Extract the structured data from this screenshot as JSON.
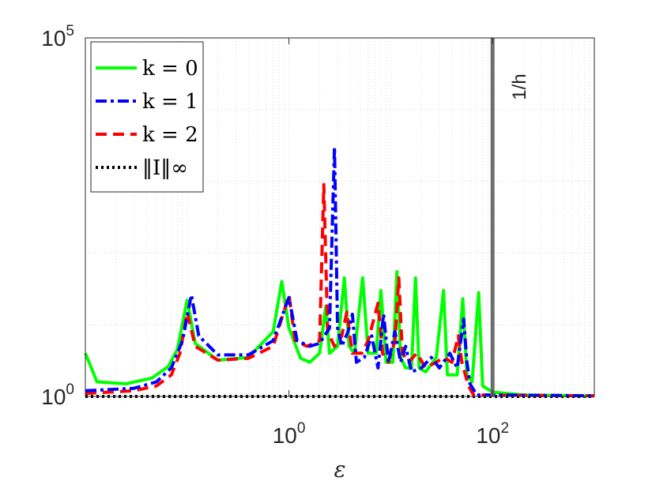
{
  "chart_data": {
    "type": "line",
    "xscale": "log",
    "yscale": "log",
    "xlim": [
      0.01,
      1000
    ],
    "ylim": [
      1,
      100000
    ],
    "xlabel": "ε",
    "ylabel": "",
    "title": "",
    "grid": true,
    "legend_position": "top-left",
    "xticks": [
      {
        "base": "10",
        "exp": "0",
        "value": 1
      },
      {
        "base": "10",
        "exp": "2",
        "value": 100
      }
    ],
    "yticks": [
      {
        "base": "10",
        "exp": "0",
        "value": 1
      },
      {
        "base": "10",
        "exp": "5",
        "value": 100000
      }
    ],
    "vline": {
      "x": 100,
      "label": "1/h",
      "color": "#6e6e6e"
    },
    "series": [
      {
        "name": "k = 0",
        "color": "#00ff00",
        "dash": "solid",
        "points": [
          [
            0.01,
            4
          ],
          [
            0.013,
            1.6
          ],
          [
            0.025,
            1.5
          ],
          [
            0.045,
            1.8
          ],
          [
            0.065,
            2.6
          ],
          [
            0.08,
            4.5
          ],
          [
            0.1,
            22
          ],
          [
            0.12,
            5.5
          ],
          [
            0.2,
            3.2
          ],
          [
            0.4,
            3.5
          ],
          [
            0.7,
            8
          ],
          [
            0.85,
            40
          ],
          [
            1.0,
            9
          ],
          [
            1.3,
            3.4
          ],
          [
            1.6,
            3
          ],
          [
            2.0,
            4
          ],
          [
            2.3,
            18
          ],
          [
            2.5,
            4
          ],
          [
            3.0,
            5
          ],
          [
            3.5,
            45
          ],
          [
            3.9,
            5
          ],
          [
            4.4,
            4
          ],
          [
            5.3,
            45
          ],
          [
            6.0,
            4
          ],
          [
            7.2,
            4
          ],
          [
            8.0,
            30
          ],
          [
            9.0,
            3
          ],
          [
            10.5,
            3
          ],
          [
            11.5,
            55
          ],
          [
            12.5,
            3.5
          ],
          [
            14,
            2.5
          ],
          [
            16,
            2.5
          ],
          [
            17.5,
            45
          ],
          [
            19,
            2.5
          ],
          [
            22,
            2.2
          ],
          [
            28,
            3.5
          ],
          [
            33,
            30
          ],
          [
            36,
            2
          ],
          [
            45,
            2
          ],
          [
            51,
            23
          ],
          [
            56,
            2
          ],
          [
            63,
            1.6
          ],
          [
            73,
            28
          ],
          [
            80,
            1.4
          ],
          [
            100,
            1.15
          ],
          [
            200,
            1.05
          ],
          [
            1000,
            1.02
          ]
        ]
      },
      {
        "name": "k = 1",
        "color": "#0000ff",
        "dash": "dashdot",
        "points": [
          [
            0.01,
            1.2
          ],
          [
            0.03,
            1.3
          ],
          [
            0.05,
            1.6
          ],
          [
            0.07,
            2.5
          ],
          [
            0.09,
            6
          ],
          [
            0.11,
            26
          ],
          [
            0.13,
            7
          ],
          [
            0.2,
            3.8
          ],
          [
            0.4,
            3.8
          ],
          [
            0.7,
            6
          ],
          [
            1.0,
            24
          ],
          [
            1.2,
            6
          ],
          [
            1.6,
            5
          ],
          [
            2.0,
            5.5
          ],
          [
            2.5,
            9
          ],
          [
            2.8,
            3000
          ],
          [
            3.0,
            9
          ],
          [
            3.3,
            5
          ],
          [
            3.8,
            8
          ],
          [
            4.2,
            14
          ],
          [
            4.6,
            3
          ],
          [
            5.5,
            3.5
          ],
          [
            6.5,
            7
          ],
          [
            7.5,
            2.5
          ],
          [
            8.5,
            14
          ],
          [
            9.5,
            3
          ],
          [
            11,
            8
          ],
          [
            12.5,
            3
          ],
          [
            14,
            5
          ],
          [
            16,
            2.2
          ],
          [
            20,
            2.5
          ],
          [
            25,
            3.5
          ],
          [
            30,
            2.5
          ],
          [
            38,
            4
          ],
          [
            45,
            2.5
          ],
          [
            52,
            12
          ],
          [
            56,
            3
          ],
          [
            60,
            1.5
          ],
          [
            70,
            1.05
          ],
          [
            1000,
            1.02
          ]
        ]
      },
      {
        "name": "k = 2",
        "color": "#ff0000",
        "dash": "dashed",
        "points": [
          [
            0.01,
            1.1
          ],
          [
            0.03,
            1.2
          ],
          [
            0.05,
            1.4
          ],
          [
            0.07,
            2
          ],
          [
            0.085,
            4
          ],
          [
            0.1,
            15
          ],
          [
            0.12,
            5
          ],
          [
            0.2,
            3.2
          ],
          [
            0.4,
            3.4
          ],
          [
            0.7,
            5
          ],
          [
            1.0,
            26
          ],
          [
            1.15,
            6
          ],
          [
            1.5,
            5
          ],
          [
            2.0,
            6
          ],
          [
            2.2,
            900
          ],
          [
            2.4,
            8
          ],
          [
            2.8,
            5
          ],
          [
            3.3,
            7
          ],
          [
            3.7,
            15
          ],
          [
            4.2,
            4
          ],
          [
            5.2,
            4
          ],
          [
            6.0,
            6
          ],
          [
            7.5,
            20
          ],
          [
            8.3,
            4
          ],
          [
            9.5,
            3
          ],
          [
            11,
            6
          ],
          [
            12,
            45
          ],
          [
            13,
            4
          ],
          [
            15,
            3
          ],
          [
            18,
            4
          ],
          [
            22,
            2.5
          ],
          [
            28,
            3
          ],
          [
            33,
            3.5
          ],
          [
            40,
            3
          ],
          [
            46,
            7
          ],
          [
            50,
            3
          ],
          [
            58,
            1.4
          ],
          [
            65,
            1.05
          ],
          [
            1000,
            1.02
          ]
        ]
      },
      {
        "name": "‖I‖∞",
        "color": "#000000",
        "dash": "dotted",
        "points": [
          [
            0.01,
            1
          ],
          [
            1000,
            1
          ]
        ]
      }
    ]
  }
}
